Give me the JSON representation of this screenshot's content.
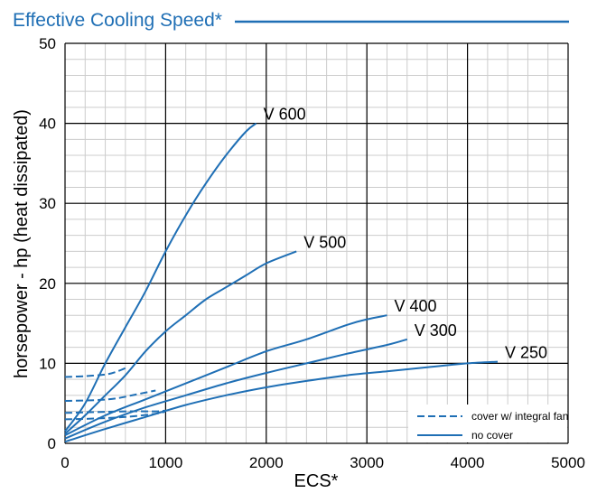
{
  "chart_data": {
    "type": "line",
    "title": "Effective Cooling Speed*",
    "xlabel": "ECS*",
    "ylabel": "horsepower - hp  (heat dissipated)",
    "xlim": [
      0,
      5000
    ],
    "ylim": [
      0,
      50
    ],
    "x_ticks": [
      "0",
      "1000",
      "2000",
      "3000",
      "4000",
      "5000"
    ],
    "y_ticks": [
      "0",
      "10",
      "20",
      "30",
      "40",
      "50"
    ],
    "grid": true,
    "legend_position": "bottom-right",
    "legend": [
      {
        "label": "cover w/ integral fan",
        "style": "dashed"
      },
      {
        "label": "no cover",
        "style": "solid"
      }
    ],
    "colors": {
      "series": "#1f6fb5",
      "title": "#1f6fb5",
      "grid_major": "#000000",
      "grid_minor": "#cccccc"
    },
    "series": [
      {
        "name": "V 600",
        "style": "solid",
        "points": [
          [
            0,
            1.5
          ],
          [
            200,
            5
          ],
          [
            400,
            10
          ],
          [
            600,
            14.5
          ],
          [
            800,
            19
          ],
          [
            1000,
            24
          ],
          [
            1200,
            28.5
          ],
          [
            1400,
            32.5
          ],
          [
            1600,
            36
          ],
          [
            1800,
            39
          ],
          [
            1900,
            40
          ]
        ]
      },
      {
        "name": "V 500",
        "style": "solid",
        "points": [
          [
            0,
            1.2
          ],
          [
            200,
            3.5
          ],
          [
            400,
            6
          ],
          [
            600,
            8.5
          ],
          [
            800,
            11.5
          ],
          [
            1000,
            14
          ],
          [
            1200,
            16
          ],
          [
            1400,
            18
          ],
          [
            1600,
            19.5
          ],
          [
            1800,
            21
          ],
          [
            2000,
            22.5
          ],
          [
            2300,
            24
          ]
        ]
      },
      {
        "name": "V 400",
        "style": "solid",
        "points": [
          [
            0,
            1
          ],
          [
            400,
            3.5
          ],
          [
            800,
            5.5
          ],
          [
            1200,
            7.5
          ],
          [
            1600,
            9.5
          ],
          [
            2000,
            11.5
          ],
          [
            2400,
            13
          ],
          [
            2800,
            14.8
          ],
          [
            3000,
            15.5
          ],
          [
            3200,
            16
          ]
        ]
      },
      {
        "name": "V 300",
        "style": "solid",
        "points": [
          [
            0,
            0.6
          ],
          [
            400,
            2.7
          ],
          [
            800,
            4.5
          ],
          [
            1200,
            6
          ],
          [
            1600,
            7.5
          ],
          [
            2000,
            8.8
          ],
          [
            2400,
            10
          ],
          [
            2800,
            11.2
          ],
          [
            3200,
            12.3
          ],
          [
            3400,
            13
          ]
        ]
      },
      {
        "name": "V 250",
        "style": "solid",
        "points": [
          [
            0,
            0.2
          ],
          [
            400,
            1.8
          ],
          [
            800,
            3.3
          ],
          [
            1200,
            4.8
          ],
          [
            1600,
            6
          ],
          [
            2000,
            7
          ],
          [
            2400,
            7.8
          ],
          [
            2800,
            8.5
          ],
          [
            3200,
            9
          ],
          [
            3600,
            9.5
          ],
          [
            4000,
            10
          ],
          [
            4300,
            10.2
          ]
        ]
      },
      {
        "name": "",
        "style": "dashed",
        "points": [
          [
            0,
            8.3
          ],
          [
            200,
            8.4
          ],
          [
            400,
            8.6
          ],
          [
            500,
            8.9
          ],
          [
            600,
            9.4
          ]
        ]
      },
      {
        "name": "",
        "style": "dashed",
        "points": [
          [
            0,
            5.3
          ],
          [
            300,
            5.4
          ],
          [
            500,
            5.6
          ],
          [
            700,
            6.1
          ],
          [
            900,
            6.6
          ]
        ]
      },
      {
        "name": "",
        "style": "dashed",
        "points": [
          [
            0,
            3.8
          ],
          [
            300,
            3.9
          ],
          [
            600,
            4
          ],
          [
            900,
            4
          ],
          [
            1000,
            4.1
          ]
        ]
      },
      {
        "name": "",
        "style": "dashed",
        "points": [
          [
            0,
            3
          ],
          [
            300,
            3.1
          ],
          [
            600,
            3.3
          ],
          [
            900,
            3.7
          ],
          [
            1000,
            4
          ]
        ]
      }
    ]
  }
}
